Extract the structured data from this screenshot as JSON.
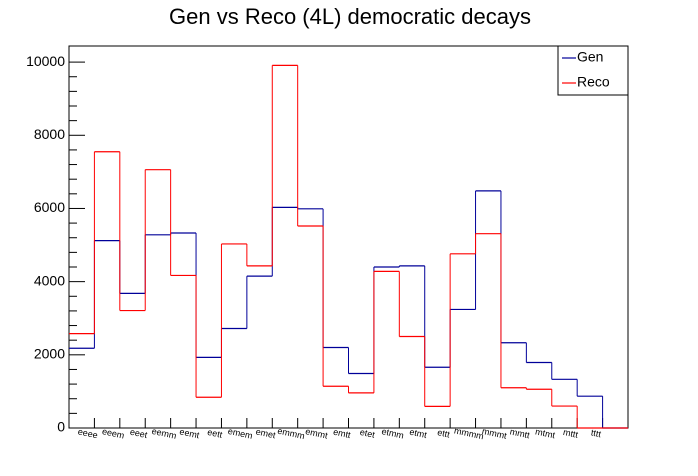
{
  "chart_data": {
    "type": "histogram-step",
    "title": "Gen vs Reco (4L) democratic decays",
    "categories": [
      "eeee",
      "eeem",
      "eeet",
      "eemm",
      "eemt",
      "eett",
      "emem",
      "emet",
      "emmm",
      "emmt",
      "emtt",
      "etet",
      "etmm",
      "etmt",
      "ettt",
      "mmmm",
      "mmmt",
      "mmtt",
      "mtmt",
      "mttt",
      "tttt",
      null
    ],
    "series": [
      {
        "name": "Gen",
        "color": "#000099",
        "values": [
          2180,
          5120,
          3680,
          5280,
          5330,
          1930,
          2720,
          4150,
          6030,
          5990,
          2200,
          1490,
          4400,
          4430,
          1660,
          3240,
          6480,
          2330,
          1790,
          1330,
          870,
          0
        ]
      },
      {
        "name": "Reco",
        "color": "#ff0000",
        "values": [
          2580,
          7550,
          3210,
          7060,
          4170,
          840,
          5030,
          4430,
          9910,
          5520,
          1140,
          960,
          4280,
          2500,
          590,
          4760,
          5310,
          1100,
          1060,
          600,
          0,
          0
        ]
      }
    ],
    "ylim": [
      0,
      10440
    ],
    "yticks": [
      0,
      2000,
      4000,
      6000,
      8000,
      10000
    ],
    "legend": "top-right"
  }
}
